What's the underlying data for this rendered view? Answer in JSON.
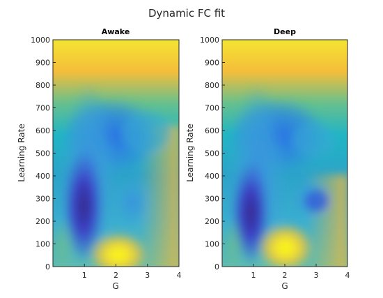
{
  "figure": {
    "title": "Dynamic FC fit"
  },
  "chart_data": [
    {
      "type": "heatmap",
      "title": "Awake",
      "xlabel": "G",
      "ylabel": "Learning Rate",
      "xlim": [
        0,
        4
      ],
      "ylim": [
        0,
        1000
      ],
      "xticks": [
        "1",
        "2",
        "3",
        "4"
      ],
      "yticks": [
        "0",
        "100",
        "200",
        "300",
        "400",
        "500",
        "600",
        "700",
        "800",
        "900",
        "1000"
      ],
      "colormap": "parula",
      "value_range": [
        0,
        1
      ],
      "features": [
        {
          "x": 0,
          "y": 1000,
          "value": 0.9
        },
        {
          "x": 1,
          "y": 250,
          "value": 0.05
        },
        {
          "x": 1,
          "y": 500,
          "value": 0.25
        },
        {
          "x": 2,
          "y": 80,
          "value": 1.0
        },
        {
          "x": 3,
          "y": 450,
          "value": 0.6
        },
        {
          "x": 4,
          "y": 300,
          "value": 0.75
        }
      ]
    },
    {
      "type": "heatmap",
      "title": "Deep",
      "xlabel": "G",
      "ylabel": "Learning Rate",
      "xlim": [
        0,
        4
      ],
      "ylim": [
        0,
        1000
      ],
      "xticks": [
        "1",
        "2",
        "3",
        "4"
      ],
      "yticks": [
        "0",
        "100",
        "200",
        "300",
        "400",
        "500",
        "600",
        "700",
        "800",
        "900",
        "1000"
      ],
      "colormap": "parula",
      "value_range": [
        0,
        1
      ],
      "features": [
        {
          "x": 0,
          "y": 1000,
          "value": 0.9
        },
        {
          "x": 1,
          "y": 300,
          "value": 0.05
        },
        {
          "x": 1,
          "y": 500,
          "value": 0.25
        },
        {
          "x": 2,
          "y": 60,
          "value": 1.0
        },
        {
          "x": 3,
          "y": 300,
          "value": 0.3
        },
        {
          "x": 4,
          "y": 200,
          "value": 0.7
        }
      ]
    }
  ],
  "colors": {
    "parula_low": "#352a87",
    "parula_mid": "#20b4aa",
    "parula_high": "#f9fb0e"
  }
}
